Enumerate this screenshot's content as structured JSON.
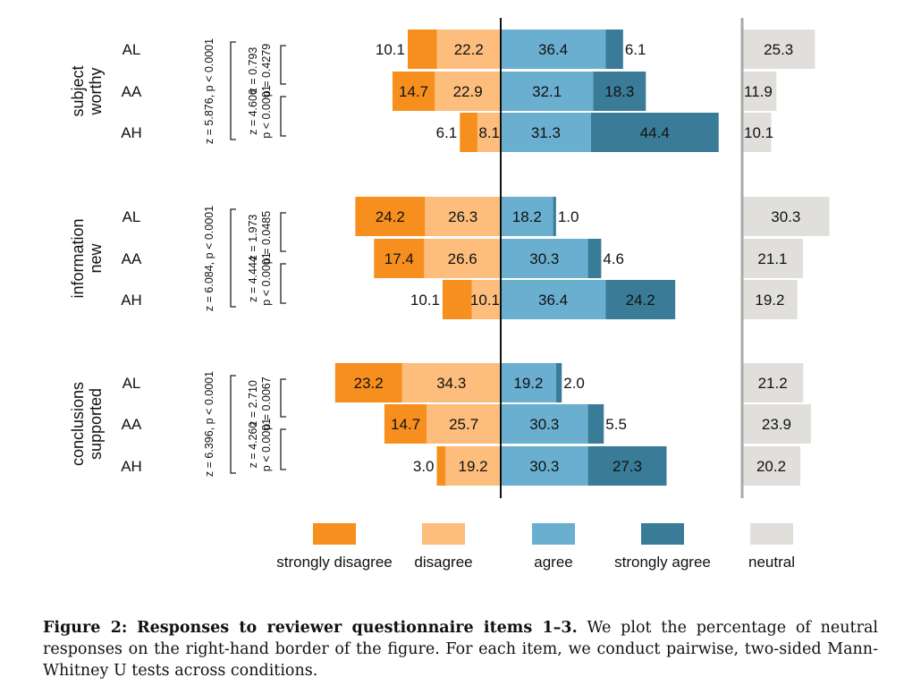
{
  "chart_data": {
    "type": "bar",
    "orientation": "horizontal",
    "stacking": "diverging",
    "x_axis_visible": false,
    "gridlines": false,
    "colors": {
      "strongly_disagree": "#f78f1e",
      "disagree": "#fcbd7d",
      "agree": "#6aafd0",
      "strongly_agree": "#3a7c98",
      "neutral": "#e0dfdc",
      "center_line": "#111111",
      "neutral_axis": "#aaaaaa"
    },
    "legend": {
      "position": "bottom",
      "entries": [
        {
          "key": "strongly_disagree",
          "label": "strongly disagree"
        },
        {
          "key": "disagree",
          "label": "disagree"
        },
        {
          "key": "agree",
          "label": "agree"
        },
        {
          "key": "strongly_agree",
          "label": "strongly agree"
        },
        {
          "key": "neutral",
          "label": "neutral"
        }
      ]
    },
    "groups": [
      {
        "title_lines": [
          "subject",
          "worthy"
        ],
        "rows": [
          {
            "condition": "AL",
            "strongly_disagree": 10.1,
            "disagree": 22.2,
            "agree": 36.4,
            "strongly_agree": 6.1,
            "neutral": 25.3
          },
          {
            "condition": "AA",
            "strongly_disagree": 14.7,
            "disagree": 22.9,
            "agree": 32.1,
            "strongly_agree": 18.3,
            "neutral": 11.9
          },
          {
            "condition": "AH",
            "strongly_disagree": 6.1,
            "disagree": 8.1,
            "agree": 31.3,
            "strongly_agree": 44.4,
            "neutral": 10.1
          }
        ],
        "tests": {
          "AL_vs_AH": "z = 5.876, p < 0.0001",
          "AL_vs_AA": {
            "z": "z = 0.793",
            "p": "p = 0.4279"
          },
          "AA_vs_AH": {
            "z": "z = 4.606",
            "p": "p < 0.0001"
          }
        }
      },
      {
        "title_lines": [
          "information",
          "new"
        ],
        "rows": [
          {
            "condition": "AL",
            "strongly_disagree": 24.2,
            "disagree": 26.3,
            "agree": 18.2,
            "strongly_agree": 1.0,
            "neutral": 30.3
          },
          {
            "condition": "AA",
            "strongly_disagree": 17.4,
            "disagree": 26.6,
            "agree": 30.3,
            "strongly_agree": 4.6,
            "neutral": 21.1
          },
          {
            "condition": "AH",
            "strongly_disagree": 10.1,
            "disagree": 10.1,
            "agree": 36.4,
            "strongly_agree": 24.2,
            "neutral": 19.2
          }
        ],
        "tests": {
          "AL_vs_AH": "z = 6.084, p < 0.0001",
          "AL_vs_AA": {
            "z": "z = 1.973",
            "p": "p = 0.0485"
          },
          "AA_vs_AH": {
            "z": "z = 4.444",
            "p": "p < 0.0001"
          }
        }
      },
      {
        "title_lines": [
          "conclusions",
          "supported"
        ],
        "rows": [
          {
            "condition": "AL",
            "strongly_disagree": 23.2,
            "disagree": 34.3,
            "agree": 19.2,
            "strongly_agree": 2.0,
            "neutral": 21.2
          },
          {
            "condition": "AA",
            "strongly_disagree": 14.7,
            "disagree": 25.7,
            "agree": 30.3,
            "strongly_agree": 5.5,
            "neutral": 23.9
          },
          {
            "condition": "AH",
            "strongly_disagree": 3.0,
            "disagree": 19.2,
            "agree": 30.3,
            "strongly_agree": 27.3,
            "neutral": 20.2
          }
        ],
        "tests": {
          "AL_vs_AH": "z = 6.396, p < 0.0001",
          "AL_vs_AA": {
            "z": "z = 2.710",
            "p": "p = 0.0067"
          },
          "AA_vs_AH": {
            "z": "z = 4.260",
            "p": "p < 0.0001"
          }
        }
      }
    ]
  },
  "caption": {
    "label": "Figure 2:",
    "title": "Responses to reviewer questionnaire items 1–3.",
    "text": "We plot the percentage of neutral responses on the right-hand border of the figure. For each item, we conduct pairwise, two-sided Mann-Whitney U tests across conditions."
  }
}
